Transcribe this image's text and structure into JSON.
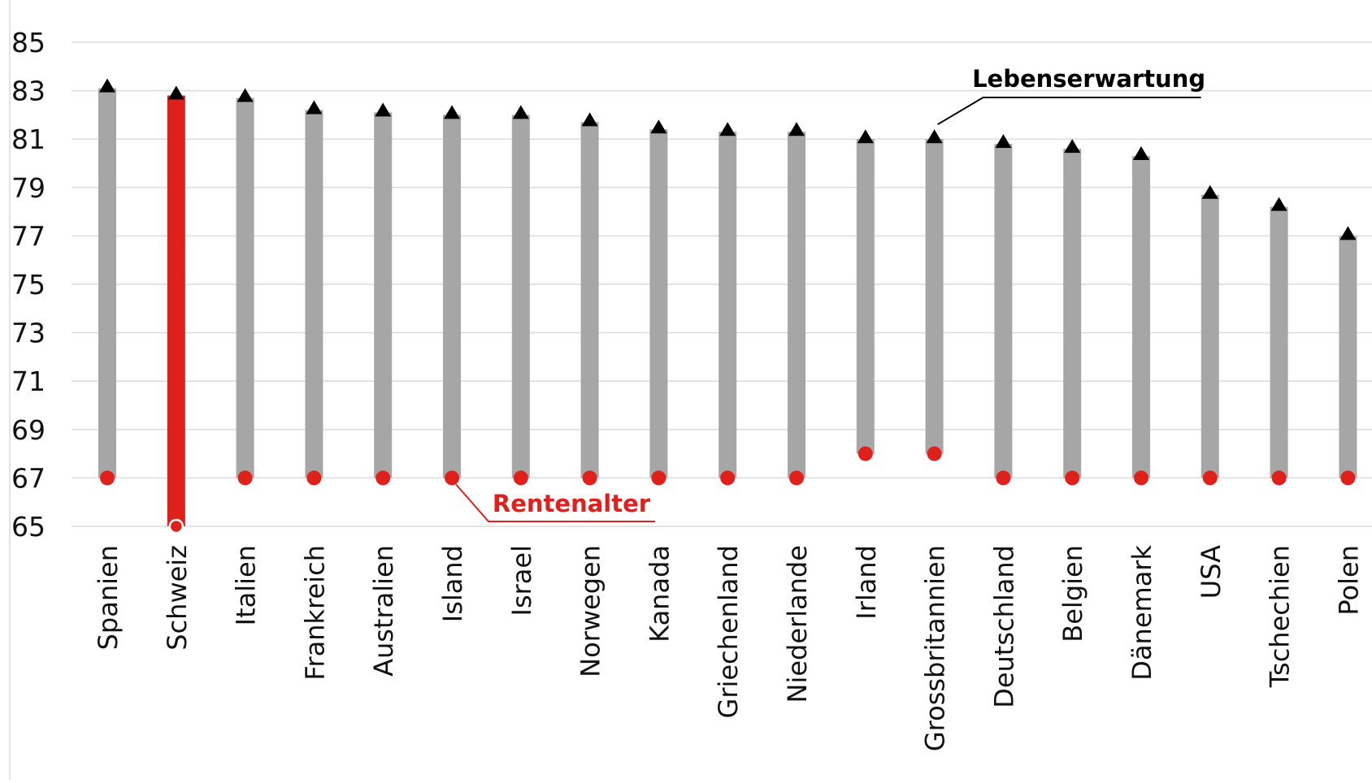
{
  "chart_data": {
    "type": "range-bar",
    "title": "",
    "xlabel": "",
    "ylabel": "",
    "ylim": [
      65,
      85
    ],
    "yticks": [
      65,
      67,
      69,
      71,
      73,
      75,
      77,
      79,
      81,
      83,
      85
    ],
    "grid": true,
    "categories": [
      "Spanien",
      "Schweiz",
      "Italien",
      "Frankreich",
      "Australien",
      "Island",
      "Israel",
      "Norwegen",
      "Kanada",
      "Griechenland",
      "Niederlande",
      "Irland",
      "Grossbritannien",
      "Deutschland",
      "Belgien",
      "Dänemark",
      "USA",
      "Tschechien",
      "Polen"
    ],
    "series": [
      {
        "name": "Lebenserwartung",
        "marker": "triangle",
        "values": [
          83.1,
          82.8,
          82.7,
          82.2,
          82.1,
          82.0,
          82.0,
          81.7,
          81.4,
          81.3,
          81.3,
          81.0,
          81.0,
          80.8,
          80.6,
          80.3,
          78.7,
          78.2,
          77.0
        ]
      },
      {
        "name": "Rentenalter",
        "marker": "circle",
        "values": [
          67,
          65,
          67,
          67,
          67,
          67,
          67,
          67,
          67,
          67,
          67,
          68,
          68,
          67,
          67,
          67,
          67,
          67,
          67
        ]
      }
    ],
    "highlight": "Schweiz",
    "annotations": [
      {
        "text": "Lebenserwartung",
        "target": "Grossbritannien",
        "series": "Lebenserwartung"
      },
      {
        "text": "Rentenalter",
        "target": "Island",
        "series": "Rentenalter"
      }
    ],
    "colors": {
      "bar": "#a6a6a6",
      "highlight_bar": "#e0201b",
      "rentenalter_marker": "#e0201b",
      "lebenserwartung_marker": "#000000",
      "grid": "#dcdcdc",
      "annotation_lebenserwartung": "#000000",
      "annotation_rentenalter": "#e0201b"
    }
  }
}
